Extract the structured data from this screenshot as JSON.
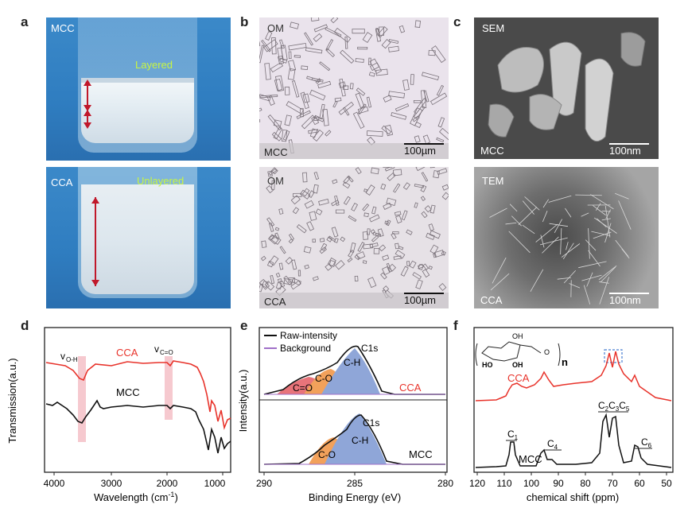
{
  "panels": {
    "a": {
      "letter": "a",
      "top_label": "MCC",
      "top_state": "Layered",
      "bottom_label": "CCA",
      "bottom_state": "Unlayered",
      "state_color": "#c8f542"
    },
    "b": {
      "letter": "b",
      "top_tag": "OM",
      "top_sample": "MCC",
      "top_scale": "100µm",
      "bottom_tag": "OM",
      "bottom_sample": "CCA",
      "bottom_scale": "100µm"
    },
    "c": {
      "letter": "c",
      "top_tag": "SEM",
      "top_sample": "MCC",
      "top_scale": "100nm",
      "bottom_tag": "TEM",
      "bottom_sample": "CCA",
      "bottom_scale": "100nm"
    },
    "d": {
      "letter": "d",
      "ylabel": "Transmission(a.u.)",
      "xlabel": "Wavelength (cm",
      "xlabel_sup": "-1",
      "xlabel_end": ")",
      "ticks": [
        "4000",
        "3000",
        "2000",
        "1000"
      ],
      "ann_oh": "v",
      "ann_oh_sub": "O-H",
      "ann_co": "v",
      "ann_co_sub": "C=O",
      "label_cca": "CCA",
      "label_mcc": "MCC"
    },
    "e": {
      "letter": "e",
      "ylabel": "Intensity(a.u.)",
      "xlabel": "Binding Energy (eV)",
      "ticks": [
        "290",
        "285",
        "280"
      ],
      "legend": [
        "Raw-intensity",
        "Background"
      ],
      "top_peaks": [
        "C1s",
        "C-H",
        "C-O",
        "C=O"
      ],
      "top_sample": "CCA",
      "bottom_peaks": [
        "C1s",
        "C-H",
        "C-O"
      ],
      "bottom_sample": "MCC"
    },
    "f": {
      "letter": "f",
      "xlabel": "chemical shift (ppm)",
      "ticks": [
        "120",
        "110",
        "100",
        "90",
        "80",
        "70",
        "60",
        "50"
      ],
      "label_cca": "CCA",
      "label_mcc": "MCC",
      "c1": "C",
      "c1s": "1",
      "c4": "C",
      "c4s": "4",
      "c2": "C",
      "c2s": "2",
      "c3": "C",
      "c3s": "3",
      "c5": "C",
      "c5s": "5",
      "c6": "C",
      "c6s": "6",
      "struct_oh1": "OH",
      "struct_oh2": "OH",
      "struct_ho": "HO",
      "struct_o": "O",
      "struct_n": "n"
    }
  },
  "colors": {
    "cca": "#e8332b",
    "mcc": "#111111",
    "band": "#f6c9cf",
    "co": "#f2a15b",
    "cc": "#e8747a",
    "ch": "#8fa6d8",
    "bg": "#a070c8",
    "cca_text": "#e8332b"
  }
}
